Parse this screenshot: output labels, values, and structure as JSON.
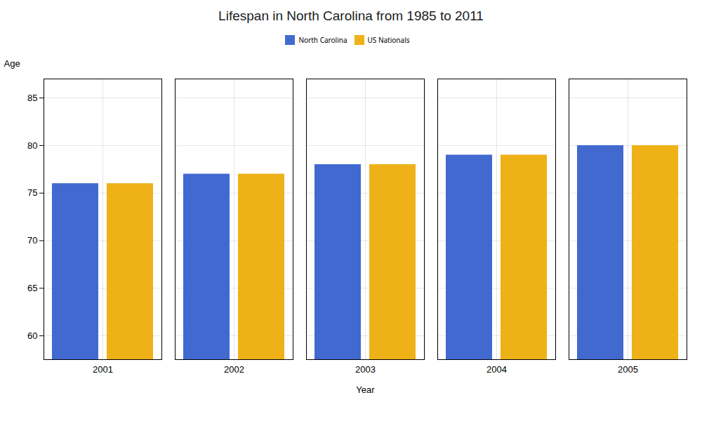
{
  "chart_data": {
    "type": "bar",
    "title": "Lifespan in North Carolina from 1985 to 2011",
    "xlabel": "Year",
    "ylabel": "Age",
    "categories": [
      2001,
      2002,
      2003,
      2004,
      2005
    ],
    "series": [
      {
        "name": "North Carolina",
        "values": [
          76,
          77,
          78,
          79,
          80
        ]
      },
      {
        "name": "US Nationals",
        "values": [
          76,
          77,
          78,
          79,
          80
        ]
      }
    ],
    "ylim": [
      57.5,
      87
    ],
    "yticks": [
      60,
      65,
      70,
      75,
      80,
      85
    ],
    "grid": true,
    "legend": "top"
  }
}
